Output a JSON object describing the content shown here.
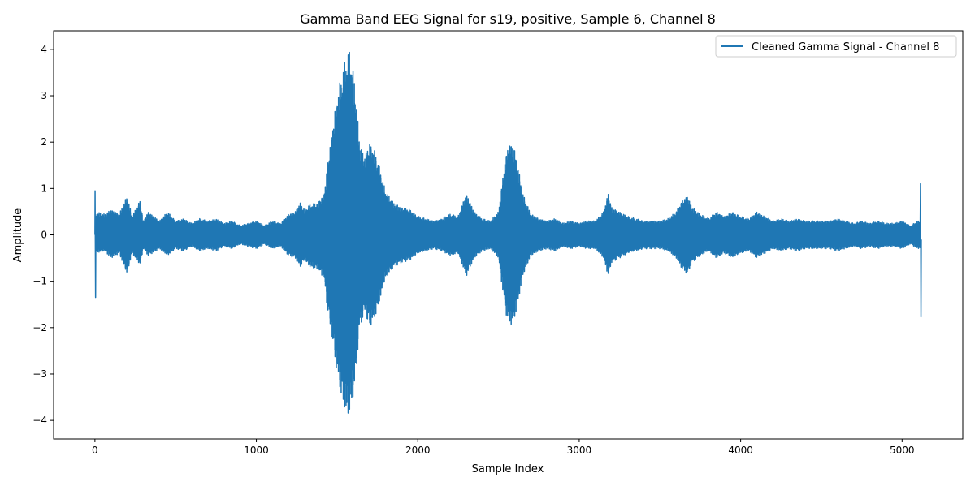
{
  "chart_data": {
    "type": "line",
    "title": "Gamma Band EEG Signal for s19, positive, Sample 6, Channel 8",
    "xlabel": "Sample Index",
    "ylabel": "Amplitude",
    "xlim": [
      -256,
      5376
    ],
    "ylim": [
      -4.4,
      4.4
    ],
    "xticks": [
      0,
      1000,
      2000,
      3000,
      4000,
      5000
    ],
    "yticks": [
      -4,
      -3,
      -2,
      -1,
      0,
      1,
      2,
      3,
      4
    ],
    "grid": false,
    "legend_position": "top-right",
    "series": [
      {
        "name": "Cleaned Gamma Signal - Channel 8",
        "color": "#1f77b4",
        "n_samples": 5120,
        "start_values": [
          0.95,
          -1.35
        ],
        "end_values": [
          1.1,
          -1.77
        ],
        "envelope": {
          "x": [
            0,
            60,
            100,
            150,
            200,
            230,
            280,
            300,
            330,
            400,
            450,
            500,
            550,
            600,
            650,
            700,
            750,
            800,
            850,
            900,
            950,
            1000,
            1050,
            1100,
            1150,
            1200,
            1240,
            1270,
            1300,
            1330,
            1380,
            1420,
            1440,
            1470,
            1500,
            1530,
            1560,
            1580,
            1610,
            1640,
            1670,
            1700,
            1730,
            1760,
            1800,
            1850,
            1900,
            1950,
            2000,
            2050,
            2100,
            2150,
            2200,
            2250,
            2300,
            2350,
            2400,
            2450,
            2500,
            2540,
            2560,
            2590,
            2620,
            2650,
            2700,
            2750,
            2800,
            2850,
            2900,
            2950,
            3000,
            3050,
            3100,
            3150,
            3180,
            3200,
            3250,
            3300,
            3350,
            3400,
            3450,
            3500,
            3550,
            3600,
            3640,
            3670,
            3700,
            3750,
            3800,
            3850,
            3900,
            3950,
            4000,
            4050,
            4100,
            4150,
            4200,
            4250,
            4300,
            4350,
            4400,
            4450,
            4500,
            4550,
            4600,
            4650,
            4700,
            4750,
            4800,
            4850,
            4900,
            4950,
            5000,
            5050,
            5100
          ],
          "upper": [
            0.5,
            0.45,
            0.55,
            0.45,
            0.85,
            0.4,
            0.75,
            0.3,
            0.5,
            0.3,
            0.5,
            0.3,
            0.35,
            0.25,
            0.35,
            0.3,
            0.35,
            0.25,
            0.3,
            0.2,
            0.25,
            0.3,
            0.2,
            0.3,
            0.25,
            0.45,
            0.5,
            0.7,
            0.55,
            0.65,
            0.7,
            0.9,
            1.5,
            2.3,
            3.0,
            3.5,
            3.9,
            4.0,
            3.3,
            2.0,
            1.7,
            2.0,
            1.85,
            1.5,
            0.95,
            0.7,
            0.6,
            0.55,
            0.4,
            0.35,
            0.3,
            0.35,
            0.45,
            0.4,
            0.9,
            0.5,
            0.35,
            0.3,
            0.5,
            1.6,
            1.95,
            2.0,
            1.5,
            0.9,
            0.45,
            0.35,
            0.3,
            0.35,
            0.25,
            0.3,
            0.25,
            0.3,
            0.3,
            0.5,
            0.9,
            0.6,
            0.5,
            0.4,
            0.35,
            0.3,
            0.3,
            0.3,
            0.35,
            0.5,
            0.75,
            0.85,
            0.6,
            0.45,
            0.35,
            0.5,
            0.4,
            0.5,
            0.4,
            0.35,
            0.5,
            0.4,
            0.3,
            0.35,
            0.3,
            0.35,
            0.3,
            0.3,
            0.3,
            0.3,
            0.35,
            0.3,
            0.25,
            0.3,
            0.25,
            0.3,
            0.25,
            0.25,
            0.3,
            0.2,
            0.3
          ],
          "lower": [
            -0.4,
            -0.35,
            -0.5,
            -0.4,
            -0.85,
            -0.4,
            -0.65,
            -0.3,
            -0.45,
            -0.3,
            -0.45,
            -0.3,
            -0.35,
            -0.25,
            -0.35,
            -0.3,
            -0.35,
            -0.25,
            -0.3,
            -0.2,
            -0.25,
            -0.3,
            -0.2,
            -0.3,
            -0.25,
            -0.45,
            -0.5,
            -0.7,
            -0.55,
            -0.7,
            -0.75,
            -0.95,
            -1.6,
            -2.3,
            -3.0,
            -3.6,
            -3.95,
            -3.9,
            -3.3,
            -2.0,
            -1.7,
            -2.0,
            -1.85,
            -1.5,
            -0.95,
            -0.7,
            -0.6,
            -0.55,
            -0.4,
            -0.35,
            -0.3,
            -0.35,
            -0.45,
            -0.4,
            -0.9,
            -0.5,
            -0.35,
            -0.3,
            -0.5,
            -1.6,
            -1.9,
            -1.95,
            -1.5,
            -0.9,
            -0.45,
            -0.35,
            -0.3,
            -0.35,
            -0.25,
            -0.3,
            -0.25,
            -0.3,
            -0.3,
            -0.5,
            -0.9,
            -0.6,
            -0.5,
            -0.4,
            -0.35,
            -0.3,
            -0.3,
            -0.3,
            -0.35,
            -0.5,
            -0.75,
            -0.85,
            -0.6,
            -0.45,
            -0.35,
            -0.5,
            -0.4,
            -0.5,
            -0.4,
            -0.35,
            -0.5,
            -0.4,
            -0.3,
            -0.35,
            -0.3,
            -0.35,
            -0.3,
            -0.3,
            -0.3,
            -0.3,
            -0.35,
            -0.3,
            -0.25,
            -0.3,
            -0.25,
            -0.3,
            -0.25,
            -0.25,
            -0.3,
            -0.2,
            -0.3
          ]
        }
      }
    ]
  }
}
